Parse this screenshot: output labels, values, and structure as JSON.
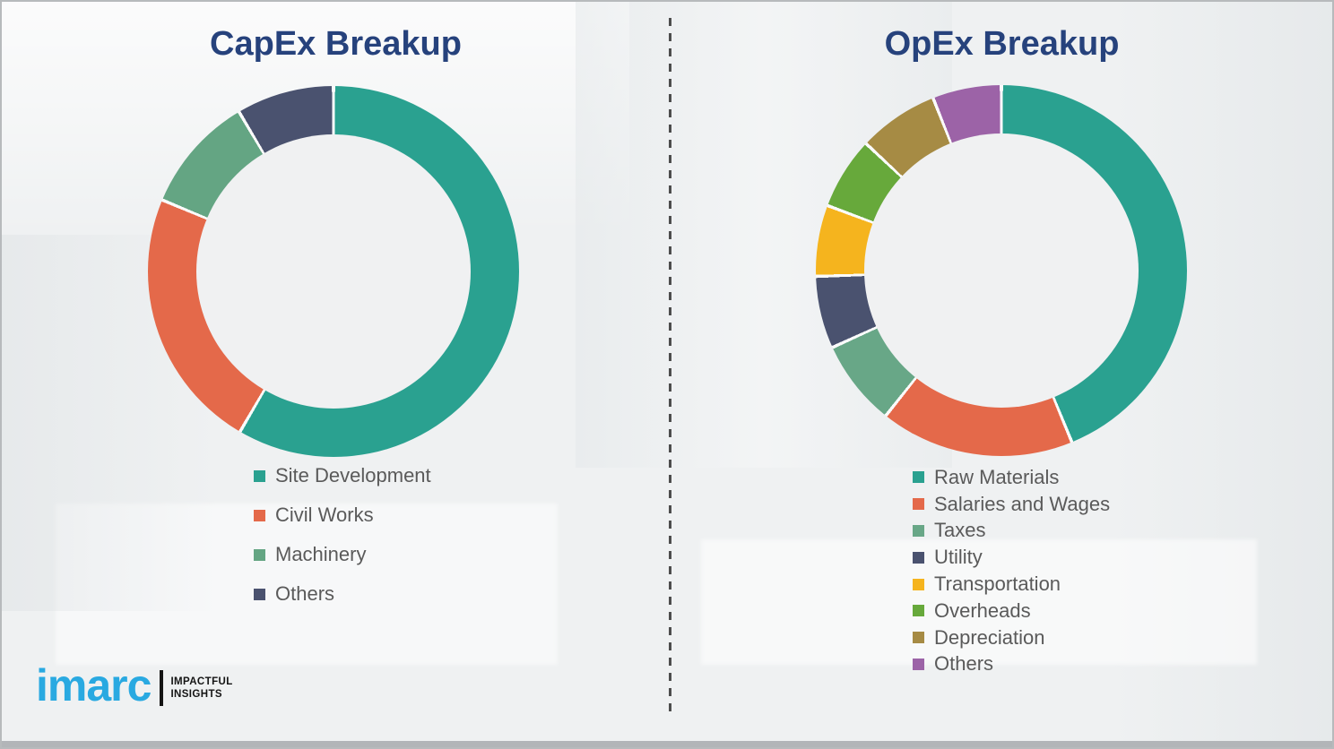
{
  "colors": {
    "title_text": "#26427c",
    "legend_text": "#5a5a5a",
    "divider": "#4d4d4d",
    "background": "#eff1f2",
    "donut_hole": "#f0f1f2",
    "logo_blue": "#29a9e1",
    "logo_black": "#141414"
  },
  "chart_data": [
    {
      "type": "pie",
      "subtype": "donut",
      "title": "CapEx Breakup",
      "start_angle_deg": 0,
      "direction": "clockwise",
      "hole_ratio": 0.74,
      "gap_color": "#fbfbfb",
      "segment_gap_deg": 1,
      "legend_position": "below-left",
      "segments": [
        {
          "label": "Site Development",
          "value": 58.4,
          "color": "#2aa190"
        },
        {
          "label": "Civil Works",
          "value": 22.9,
          "color": "#e4694a"
        },
        {
          "label": "Machinery",
          "value": 10.2,
          "color": "#64a583"
        },
        {
          "label": "Others",
          "value": 8.5,
          "color": "#4a526f"
        }
      ]
    },
    {
      "type": "pie",
      "subtype": "donut",
      "title": "OpEx Breakup",
      "start_angle_deg": 0,
      "direction": "clockwise",
      "hole_ratio": 0.74,
      "gap_color": "#fbfbfb",
      "segment_gap_deg": 1,
      "legend_position": "below-left",
      "segments": [
        {
          "label": "Raw Materials",
          "value": 43.8,
          "color": "#2aa190"
        },
        {
          "label": "Salaries and Wages",
          "value": 16.9,
          "color": "#e4694a"
        },
        {
          "label": "Taxes",
          "value": 7.5,
          "color": "#68a787"
        },
        {
          "label": "Utility",
          "value": 6.3,
          "color": "#4a526f"
        },
        {
          "label": "Transportation",
          "value": 6.2,
          "color": "#f5b41e"
        },
        {
          "label": "Overheads",
          "value": 6.3,
          "color": "#67a93b"
        },
        {
          "label": "Depreciation",
          "value": 7.0,
          "color": "#a68b44"
        },
        {
          "label": "Others",
          "value": 6.0,
          "color": "#9c63a7"
        }
      ]
    }
  ],
  "logo": {
    "brand": "imarc",
    "tagline_line1": "IMPACTFUL",
    "tagline_line2": "INSIGHTS"
  }
}
